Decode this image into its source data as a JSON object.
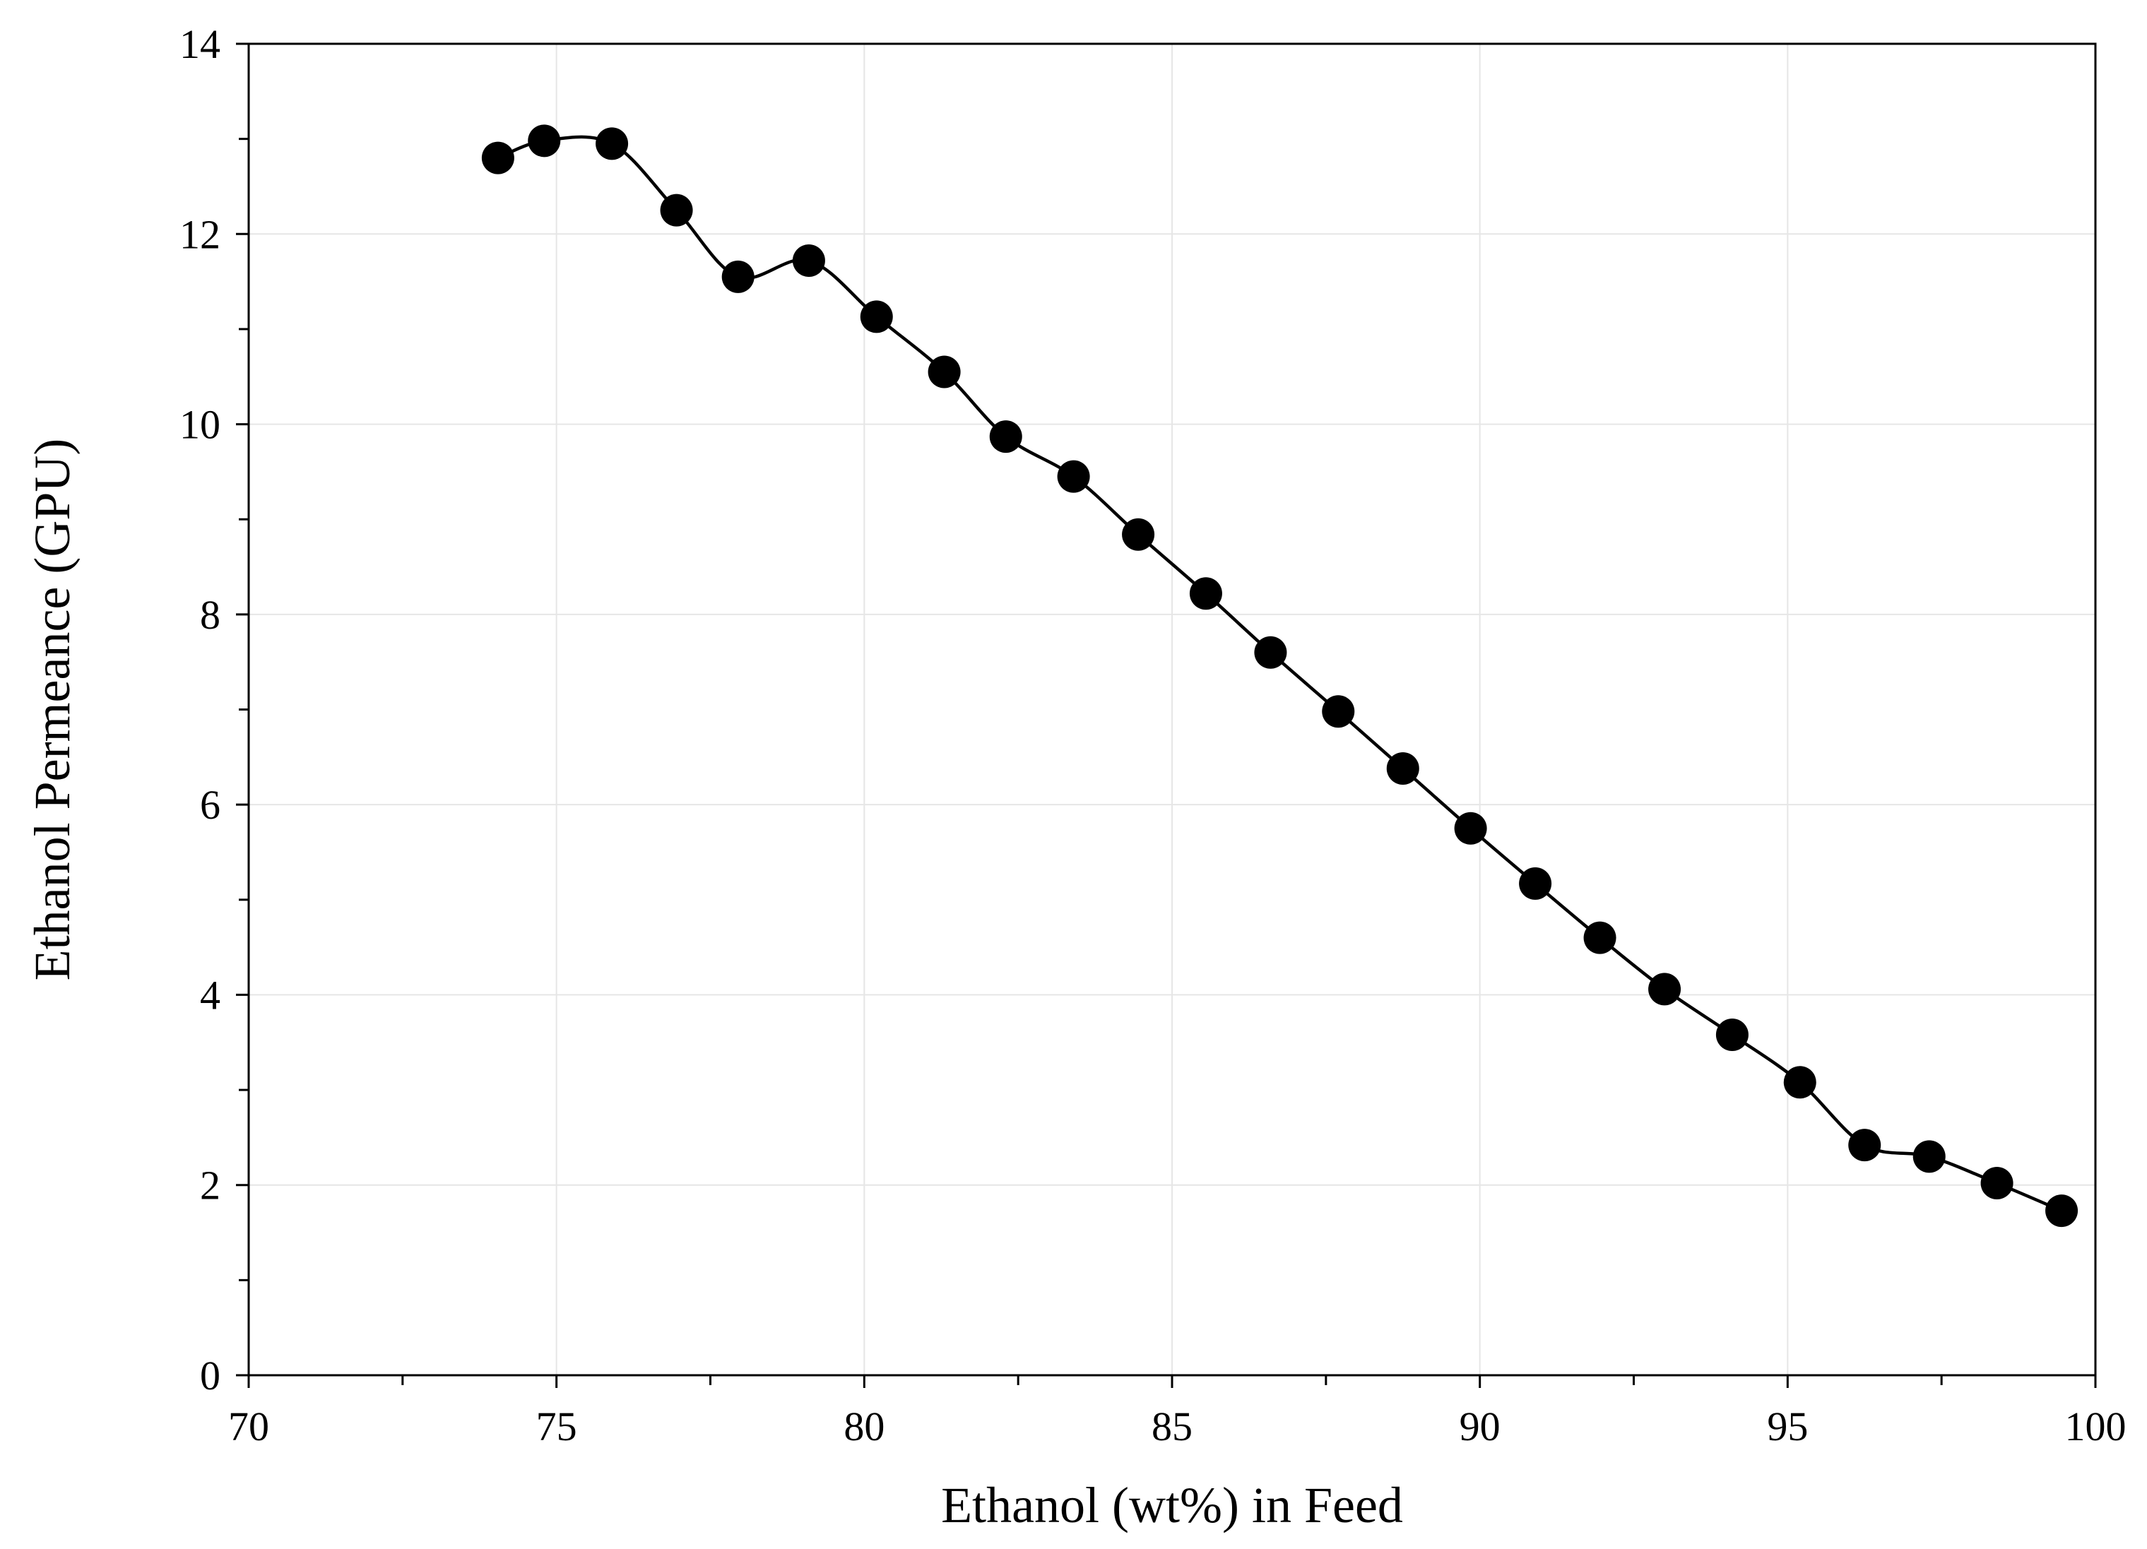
{
  "chart_data": {
    "type": "line",
    "title": "",
    "xlabel": "Ethanol (wt%) in Feed",
    "ylabel": "Ethanol Permeance (GPU)",
    "xlim": [
      70,
      100
    ],
    "ylim": [
      0,
      14
    ],
    "x_ticks": [
      70,
      75,
      80,
      85,
      90,
      95,
      100
    ],
    "x_minor_step": 2.5,
    "y_ticks": [
      0,
      2,
      4,
      6,
      8,
      10,
      12,
      14
    ],
    "y_minor_step": 1,
    "grid": true,
    "legend": "none",
    "series": [
      {
        "line_color": "#000000",
        "marker": "filled-circle",
        "smooth": true,
        "x": [
          74.05,
          74.8,
          75.9,
          76.95,
          77.95,
          79.1,
          80.2,
          81.3,
          82.3,
          83.4,
          84.45,
          85.55,
          86.6,
          87.7,
          88.75,
          89.85,
          90.9,
          91.95,
          93.0,
          94.1,
          95.2,
          96.25,
          97.3,
          98.4,
          99.45
        ],
        "y": [
          12.8,
          12.98,
          12.95,
          12.25,
          11.55,
          11.72,
          11.13,
          10.55,
          9.87,
          9.45,
          8.84,
          8.22,
          7.6,
          6.98,
          6.38,
          5.75,
          5.17,
          4.6,
          4.06,
          3.58,
          3.08,
          2.42,
          2.3,
          2.02,
          1.73
        ]
      }
    ]
  }
}
